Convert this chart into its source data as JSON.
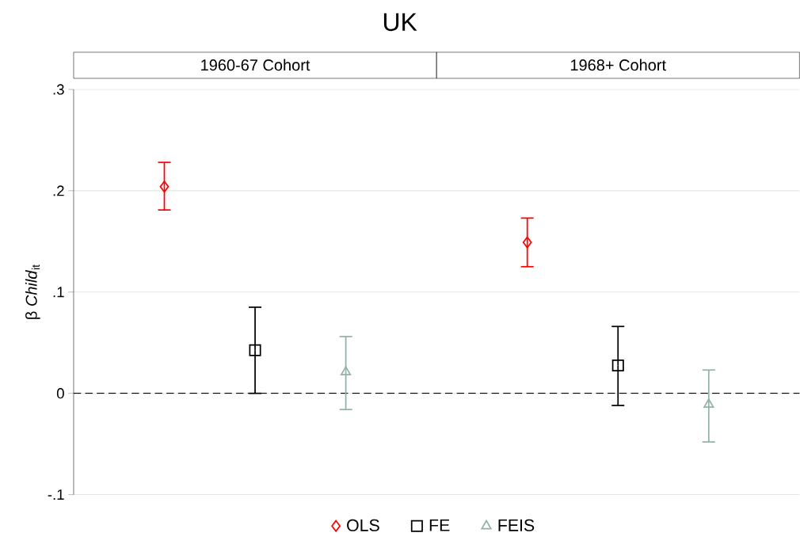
{
  "chart_data": {
    "type": "scatter",
    "title": "UK",
    "annotations": [
      "1960-67 Cohort",
      "1968+ Cohort"
    ],
    "ylabel": "β *Child*$_{it}$",
    "categories": [
      null,
      null,
      null,
      null,
      null,
      null,
      null
    ],
    "series": [
      {
        "name": "OLS",
        "color": "#ff0000",
        "marker": "diamond",
        "values": [
          0.204,
          null,
          null,
          null,
          0.149,
          null,
          null
        ],
        "errors": [
          [
            0.181,
            0.228
          ],
          null,
          null,
          null,
          [
            0.125,
            0.173
          ],
          null,
          null
        ]
      },
      {
        "name": "FE",
        "color": "#000000",
        "marker": "square",
        "values": [
          null,
          0.0425,
          null,
          null,
          null,
          0.0275,
          null
        ],
        "errors": [
          null,
          [
            0.0,
            0.085
          ],
          null,
          null,
          null,
          [
            -0.012,
            0.066
          ],
          null
        ]
      },
      {
        "name": "FEIS",
        "color": "#93b1a8",
        "marker": "triangle",
        "values": [
          null,
          null,
          0.021,
          null,
          null,
          null,
          -0.011
        ],
        "errors": [
          null,
          null,
          [
            -0.016,
            0.056
          ],
          null,
          null,
          null,
          [
            -0.048,
            0.023
          ]
        ]
      }
    ],
    "ylim": [
      -0.1,
      0.3
    ],
    "yticks": [
      {
        "value": -0.1,
        "label": "-.1"
      },
      {
        "value": 0,
        "label": "0"
      },
      {
        "value": 0.1,
        "label": ".1"
      },
      {
        "value": 0.2,
        "label": ".2"
      },
      {
        "value": 0.3,
        "label": ".3"
      }
    ],
    "ref_lines": [
      {
        "axis": "y",
        "value": 0,
        "color": "#000000",
        "line_style": "dashed"
      }
    ],
    "grid": "y",
    "legend": "bottom",
    "tick_labels": "y"
  }
}
